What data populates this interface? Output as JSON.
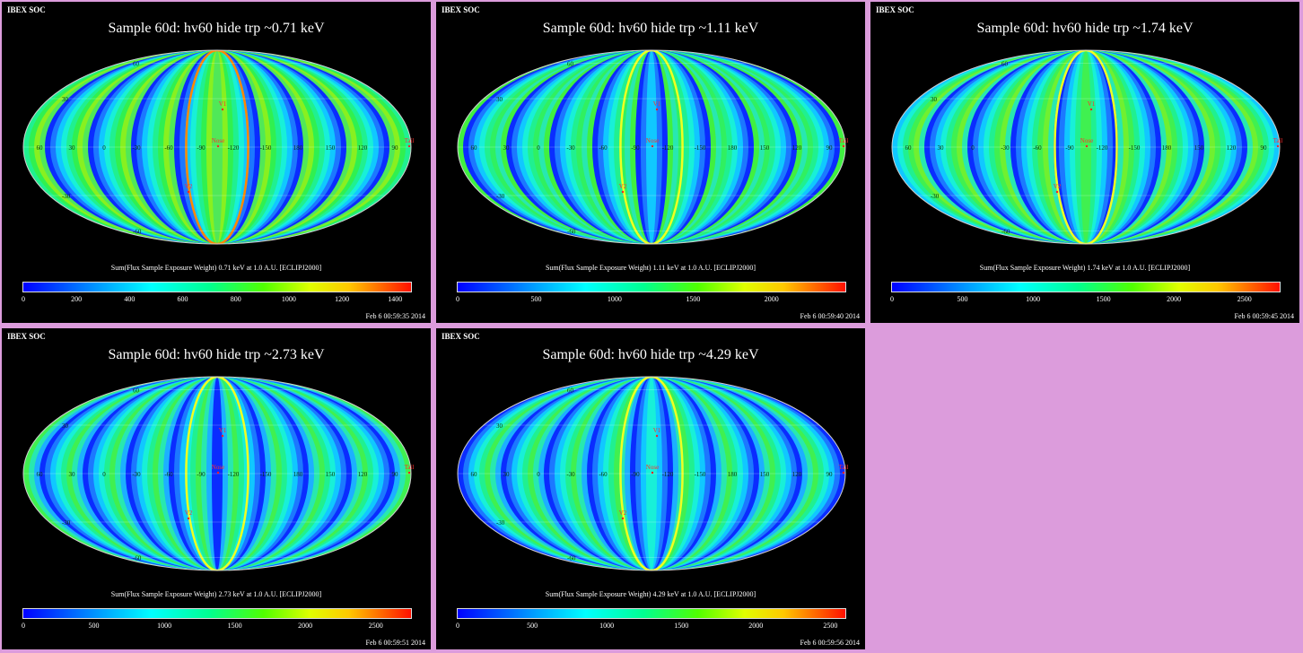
{
  "header_label": "IBEX SOC",
  "map_labels": {
    "nose": "Nose",
    "tail": "Tail",
    "v1": "V1",
    "v2": "V2",
    "lon_ticks": [
      "60",
      "30",
      "0",
      "-30",
      "-60",
      "-90",
      "-120",
      "-150",
      "180",
      "150",
      "120",
      "90"
    ],
    "lat_ticks": [
      "60",
      "30",
      "-30",
      "-60"
    ]
  },
  "panels": [
    {
      "title": "Sample 60d: hv60 hide trp ~0.71 keV",
      "caption": "Sum(Flux Sample Exposure Weight)  0.71 keV at 1.0 A.U. [ECLIPJ2000]",
      "ticks": [
        {
          "label": "0",
          "value": 0
        },
        {
          "label": "200",
          "value": 200
        },
        {
          "label": "400",
          "value": 400
        },
        {
          "label": "600",
          "value": 600
        },
        {
          "label": "800",
          "value": 800
        },
        {
          "label": "1000",
          "value": 1000
        },
        {
          "label": "1200",
          "value": 1200
        },
        {
          "label": "1400",
          "value": 1400
        }
      ],
      "range_max": 1460,
      "timestamp": "Feb  6 00:59:35 2014",
      "palette": [
        "#0a2cff",
        "#1c78ff",
        "#10c8ff",
        "#18f0d8",
        "#20f090",
        "#30f050",
        "#88f020",
        "#50e858"
      ]
    },
    {
      "title": "Sample 60d: hv60 hide trp ~1.11 keV",
      "caption": "Sum(Flux Sample Exposure Weight)  1.11 keV at 1.0 A.U. [ECLIPJ2000]",
      "ticks": [
        {
          "label": "0",
          "value": 0
        },
        {
          "label": "500",
          "value": 500
        },
        {
          "label": "1000",
          "value": 1000
        },
        {
          "label": "1500",
          "value": 1500
        },
        {
          "label": "2000",
          "value": 2000
        }
      ],
      "range_max": 2470,
      "timestamp": "Feb  6 00:59:40 2014",
      "palette": [
        "#0a2cff",
        "#1c78ff",
        "#10c8ff",
        "#18f0d8",
        "#20f090",
        "#30f060",
        "#28e8b0",
        "#40f040"
      ]
    },
    {
      "title": "Sample 60d: hv60 hide trp ~1.74 keV",
      "caption": "Sum(Flux Sample Exposure Weight)  1.74 keV at 1.0 A.U. [ECLIPJ2000]",
      "ticks": [
        {
          "label": "0",
          "value": 0
        },
        {
          "label": "500",
          "value": 500
        },
        {
          "label": "1000",
          "value": 1000
        },
        {
          "label": "1500",
          "value": 1500
        },
        {
          "label": "2000",
          "value": 2000
        },
        {
          "label": "2500",
          "value": 2500
        }
      ],
      "range_max": 2750,
      "timestamp": "Feb  6 00:59:45 2014",
      "palette": [
        "#0a2cff",
        "#1c78ff",
        "#10c8ff",
        "#18f0d8",
        "#20f090",
        "#40f050",
        "#70f030",
        "#28e8b0"
      ]
    },
    {
      "title": "Sample 60d: hv60 hide trp ~2.73 keV",
      "caption": "Sum(Flux Sample Exposure Weight)  2.73 keV at 1.0 A.U. [ECLIPJ2000]",
      "ticks": [
        {
          "label": "0",
          "value": 0
        },
        {
          "label": "500",
          "value": 500
        },
        {
          "label": "1000",
          "value": 1000
        },
        {
          "label": "1500",
          "value": 1500
        },
        {
          "label": "2000",
          "value": 2000
        },
        {
          "label": "2500",
          "value": 2500
        }
      ],
      "range_max": 2750,
      "timestamp": "Feb  6 00:59:51 2014",
      "palette": [
        "#0a2cff",
        "#1c78ff",
        "#10c8ff",
        "#18f0d8",
        "#20f090",
        "#40f050",
        "#28e8b0",
        "#1cb0ff"
      ]
    },
    {
      "title": "Sample 60d: hv60 hide trp ~4.29 keV",
      "caption": "Sum(Flux Sample Exposure Weight)  4.29 keV at 1.0 A.U. [ECLIPJ2000]",
      "ticks": [
        {
          "label": "0",
          "value": 0
        },
        {
          "label": "500",
          "value": 500
        },
        {
          "label": "1000",
          "value": 1000
        },
        {
          "label": "1500",
          "value": 1500
        },
        {
          "label": "2000",
          "value": 2000
        },
        {
          "label": "2500",
          "value": 2500
        }
      ],
      "range_max": 2600,
      "timestamp": "Feb  6 00:59:56 2014",
      "palette": [
        "#0a2cff",
        "#1c78ff",
        "#10c8ff",
        "#18f0d8",
        "#20f090",
        "#40f050",
        "#28e8b0",
        "#1cb0ff"
      ]
    }
  ]
}
